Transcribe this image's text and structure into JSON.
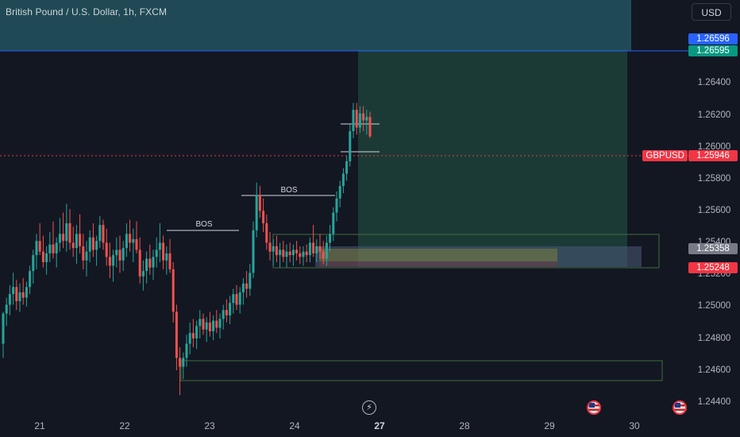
{
  "header": {
    "title": "British Pound / U.S. Dollar, 1h, FXCM",
    "currency_button": "USD"
  },
  "price_axis": {
    "ticks": [
      "1.26400",
      "1.26200",
      "1.26000",
      "1.25800",
      "1.25600",
      "1.25400",
      "1.25200",
      "1.25000",
      "1.24800",
      "1.24600",
      "1.24400"
    ],
    "tags": {
      "upper_blue": "1.26596",
      "upper_green": "1.26595",
      "current": "1.25946",
      "gray": "1.25358",
      "red": "1.25248"
    },
    "symbol_tag": "GBPUSD"
  },
  "time_axis": {
    "ticks": [
      "21",
      "22",
      "23",
      "24",
      "27",
      "28",
      "29",
      "30"
    ]
  },
  "annotations": {
    "bos_labels": [
      "BOS",
      "BOS"
    ]
  },
  "icons": {
    "flash": "flash-icon",
    "event_flag": "us-flag-icon"
  },
  "colors": {
    "background": "#131722",
    "up": "#26a69a",
    "down": "#ef5350",
    "blue_line": "#2962ff",
    "current_tag": "#f23645",
    "profit_zone": "#1c3f3c",
    "top_zone": "#1f4a55",
    "zone_border": "#2e7d32"
  },
  "chart_data": {
    "type": "candlestick",
    "symbol": "GBPUSD",
    "timeframe": "1h",
    "current_price": 1.25946,
    "ylim": [
      1.2437,
      1.2672
    ],
    "x_labels": [
      "21",
      "22",
      "23",
      "24",
      "27",
      "28",
      "29",
      "30"
    ],
    "candles": [
      [
        1.2478,
        1.2496,
        1.247,
        1.2495
      ],
      [
        1.2495,
        1.2504,
        1.2488,
        1.25
      ],
      [
        1.25,
        1.2511,
        1.2494,
        1.2506
      ],
      [
        1.2506,
        1.2518,
        1.25,
        1.251
      ],
      [
        1.251,
        1.2514,
        1.2497,
        1.2502
      ],
      [
        1.2502,
        1.2512,
        1.2496,
        1.2507
      ],
      [
        1.2507,
        1.2515,
        1.25,
        1.2504
      ],
      [
        1.2504,
        1.2513,
        1.2499,
        1.251
      ],
      [
        1.251,
        1.2522,
        1.2506,
        1.2519
      ],
      [
        1.2519,
        1.2531,
        1.2512,
        1.2528
      ],
      [
        1.2528,
        1.254,
        1.252,
        1.2536
      ],
      [
        1.2536,
        1.2546,
        1.2528,
        1.253
      ],
      [
        1.253,
        1.2539,
        1.2521,
        1.2524
      ],
      [
        1.2524,
        1.2533,
        1.2517,
        1.2529
      ],
      [
        1.2529,
        1.2541,
        1.2524,
        1.2534
      ],
      [
        1.2534,
        1.2547,
        1.2526,
        1.2529
      ],
      [
        1.2529,
        1.2538,
        1.2521,
        1.2535
      ],
      [
        1.2535,
        1.2549,
        1.253,
        1.254
      ],
      [
        1.254,
        1.2552,
        1.2532,
        1.2536
      ],
      [
        1.2536,
        1.2557,
        1.253,
        1.2546
      ],
      [
        1.2546,
        1.2554,
        1.2531,
        1.2535
      ],
      [
        1.2535,
        1.2544,
        1.2527,
        1.2532
      ],
      [
        1.2532,
        1.2545,
        1.2523,
        1.254
      ],
      [
        1.254,
        1.2551,
        1.2529,
        1.2533
      ],
      [
        1.2533,
        1.254,
        1.252,
        1.2525
      ],
      [
        1.2525,
        1.2536,
        1.2516,
        1.253
      ],
      [
        1.253,
        1.2542,
        1.2524,
        1.2538
      ],
      [
        1.2538,
        1.2546,
        1.2527,
        1.2531
      ],
      [
        1.2531,
        1.2539,
        1.2522,
        1.2536
      ],
      [
        1.2536,
        1.255,
        1.2532,
        1.2545
      ],
      [
        1.2545,
        1.2548,
        1.2531,
        1.2535
      ],
      [
        1.2535,
        1.2543,
        1.2522,
        1.2527
      ],
      [
        1.2527,
        1.2535,
        1.2515,
        1.2522
      ],
      [
        1.2522,
        1.2531,
        1.2513,
        1.2528
      ],
      [
        1.2528,
        1.2538,
        1.2521,
        1.2531
      ],
      [
        1.2531,
        1.2539,
        1.2518,
        1.2525
      ],
      [
        1.2525,
        1.2536,
        1.2519,
        1.2532
      ],
      [
        1.2532,
        1.2546,
        1.2527,
        1.254
      ],
      [
        1.254,
        1.2548,
        1.253,
        1.2535
      ],
      [
        1.2535,
        1.2543,
        1.2524,
        1.2537
      ],
      [
        1.2537,
        1.2547,
        1.2529,
        1.2531
      ],
      [
        1.2531,
        1.2538,
        1.2512,
        1.2516
      ],
      [
        1.2516,
        1.2525,
        1.2508,
        1.2519
      ],
      [
        1.2519,
        1.253,
        1.2512,
        1.2526
      ],
      [
        1.2526,
        1.2534,
        1.2517,
        1.2521
      ],
      [
        1.2521,
        1.2531,
        1.2514,
        1.2527
      ],
      [
        1.2527,
        1.2538,
        1.2521,
        1.2531
      ],
      [
        1.2531,
        1.2546,
        1.2524,
        1.2535
      ],
      [
        1.2535,
        1.2539,
        1.252,
        1.2525
      ],
      [
        1.2525,
        1.2533,
        1.2517,
        1.2529
      ],
      [
        1.2529,
        1.2537,
        1.2518,
        1.252
      ],
      [
        1.252,
        1.2524,
        1.249,
        1.2496
      ],
      [
        1.2496,
        1.25,
        1.2463,
        1.247
      ],
      [
        1.247,
        1.2476,
        1.2449,
        1.2465
      ],
      [
        1.2465,
        1.2473,
        1.2458,
        1.247
      ],
      [
        1.247,
        1.2483,
        1.2465,
        1.2478
      ],
      [
        1.2478,
        1.249,
        1.2472,
        1.2484
      ],
      [
        1.2484,
        1.2492,
        1.2476,
        1.2481
      ],
      [
        1.2481,
        1.2491,
        1.2475,
        1.2488
      ],
      [
        1.2488,
        1.2497,
        1.2481,
        1.2492
      ],
      [
        1.2492,
        1.2495,
        1.2483,
        1.2486
      ],
      [
        1.2486,
        1.2493,
        1.2479,
        1.249
      ],
      [
        1.249,
        1.2496,
        1.2482,
        1.2485
      ],
      [
        1.2485,
        1.2494,
        1.248,
        1.2491
      ],
      [
        1.2491,
        1.2497,
        1.2484,
        1.2487
      ],
      [
        1.2487,
        1.2495,
        1.2481,
        1.2492
      ],
      [
        1.2492,
        1.25,
        1.2486,
        1.2497
      ],
      [
        1.2497,
        1.2503,
        1.249,
        1.2494
      ],
      [
        1.2494,
        1.2505,
        1.2489,
        1.2501
      ],
      [
        1.2501,
        1.2509,
        1.2495,
        1.2506
      ],
      [
        1.2506,
        1.2511,
        1.2497,
        1.25
      ],
      [
        1.25,
        1.251,
        1.2495,
        1.2507
      ],
      [
        1.2507,
        1.2515,
        1.25,
        1.2512
      ],
      [
        1.2512,
        1.2519,
        1.2504,
        1.2509
      ],
      [
        1.2509,
        1.2523,
        1.2505,
        1.2518
      ],
      [
        1.2518,
        1.2547,
        1.2515,
        1.2542
      ],
      [
        1.2542,
        1.2569,
        1.2538,
        1.2562
      ],
      [
        1.2562,
        1.2567,
        1.2549,
        1.2553
      ],
      [
        1.2553,
        1.256,
        1.2541,
        1.2546
      ],
      [
        1.2546,
        1.2551,
        1.2531,
        1.2535
      ],
      [
        1.2535,
        1.2541,
        1.2525,
        1.253
      ],
      [
        1.253,
        1.2537,
        1.2522,
        1.2533
      ],
      [
        1.2533,
        1.2539,
        1.2524,
        1.2528
      ],
      [
        1.2528,
        1.2535,
        1.2521,
        1.2531
      ],
      [
        1.2531,
        1.2536,
        1.2524,
        1.2527
      ],
      [
        1.2527,
        1.2534,
        1.2521,
        1.253
      ],
      [
        1.253,
        1.2535,
        1.2524,
        1.2528
      ],
      [
        1.2528,
        1.2534,
        1.2522,
        1.2531
      ],
      [
        1.2531,
        1.2536,
        1.2525,
        1.2529
      ],
      [
        1.2529,
        1.2533,
        1.2523,
        1.2527
      ],
      [
        1.2527,
        1.2533,
        1.2522,
        1.253
      ],
      [
        1.253,
        1.2534,
        1.2524,
        1.2528
      ],
      [
        1.2528,
        1.2538,
        1.2524,
        1.2535
      ],
      [
        1.2535,
        1.2545,
        1.2527,
        1.2529
      ],
      [
        1.2529,
        1.2537,
        1.2524,
        1.2533
      ],
      [
        1.2533,
        1.254,
        1.2526,
        1.253
      ],
      [
        1.253,
        1.2536,
        1.2523,
        1.2526
      ],
      [
        1.2526,
        1.2539,
        1.2522,
        1.2535
      ],
      [
        1.2535,
        1.2545,
        1.253,
        1.254
      ],
      [
        1.254,
        1.2555,
        1.2536,
        1.2552
      ],
      [
        1.2552,
        1.2564,
        1.2547,
        1.256
      ],
      [
        1.256,
        1.257,
        1.2555,
        1.2567
      ],
      [
        1.2567,
        1.2577,
        1.2563,
        1.2574
      ],
      [
        1.2574,
        1.2584,
        1.257,
        1.2581
      ],
      [
        1.2581,
        1.2602,
        1.2578,
        1.2598
      ],
      [
        1.2598,
        1.2614,
        1.2594,
        1.261
      ],
      [
        1.261,
        1.2614,
        1.2596,
        1.26
      ],
      [
        1.26,
        1.2612,
        1.2597,
        1.2608
      ],
      [
        1.2608,
        1.2612,
        1.2598,
        1.2604
      ],
      [
        1.2604,
        1.261,
        1.2596,
        1.2606
      ],
      [
        1.2606,
        1.2609,
        1.2594,
        1.2595
      ]
    ],
    "annotations": [
      {
        "type": "horizontal-line",
        "price": 1.26596,
        "color": "#2962ff"
      },
      {
        "type": "level",
        "label": "BOS",
        "price": 1.2548
      },
      {
        "type": "level",
        "label": "BOS",
        "price": 1.2569
      },
      {
        "type": "horizontal-range",
        "top": 1.2614,
        "bottom": 1.2597
      },
      {
        "type": "zone",
        "top": 1.2546,
        "bottom": 1.2524
      },
      {
        "type": "zone",
        "top": 1.2467,
        "bottom": 1.2455
      },
      {
        "type": "position",
        "target": 1.26595,
        "entry": 1.25358,
        "stop": 1.25248
      }
    ]
  }
}
